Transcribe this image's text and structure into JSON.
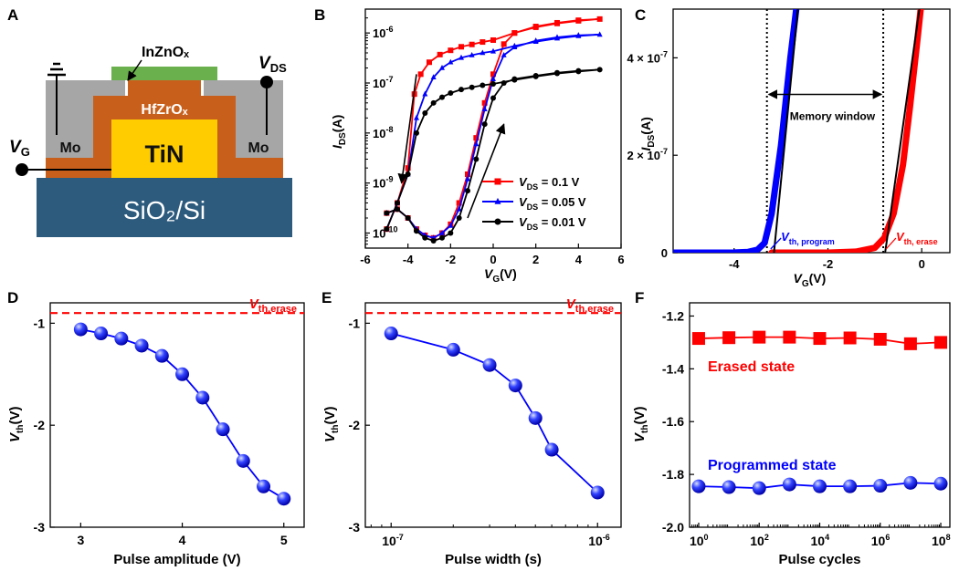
{
  "panel_letters": [
    "A",
    "B",
    "C",
    "D",
    "E",
    "F"
  ],
  "device": {
    "layers": {
      "substrate": "SiO₂/Si",
      "gate": "TiN",
      "dielectric": "HfZrOₓ",
      "channel": "InZnOₓ",
      "contact_left": "Mo",
      "contact_right": "Mo"
    },
    "terminals": {
      "gate": "V",
      "gate_sub": "G",
      "drain": "V",
      "drain_sub": "DS"
    },
    "colors": {
      "substrate": "#2d5b7e",
      "gate": "#ffcc00",
      "dielectric": "#c8601c",
      "contact": "#a6a6a6",
      "channel": "#6ab04c"
    }
  },
  "chart_data": [
    {
      "id": "B",
      "type": "line",
      "yscale": "log",
      "xlabel": "V",
      "xlabel_sub": "G",
      "xlabel_unit": "(V)",
      "ylabel": "I",
      "ylabel_sub": "DS",
      "ylabel_unit": "(A)",
      "xlim": [
        -6,
        6
      ],
      "ylim": [
        5e-11,
        3e-06
      ],
      "xticks": [
        -6,
        -4,
        -2,
        0,
        2,
        4,
        6
      ],
      "yticks": [
        1e-10,
        1e-09,
        1e-08,
        1e-07,
        1e-06
      ],
      "ytick_labels": [
        {
          "b": "10",
          "e": "-10"
        },
        {
          "b": "10",
          "e": "-9"
        },
        {
          "b": "10",
          "e": "-8"
        },
        {
          "b": "10",
          "e": "-7"
        },
        {
          "b": "10",
          "e": "-6"
        }
      ],
      "legend_position": "lower-right",
      "series": [
        {
          "name": "V",
          "name_sub": "DS",
          "name_value": "= 0.1 V",
          "color": "#ff0000",
          "marker": "square",
          "x": [
            -5,
            -4.5,
            -4,
            -3.7,
            -3.4,
            -3.0,
            -2.5,
            -2.0,
            -1.5,
            -1.0,
            -0.5,
            0,
            1,
            2,
            3,
            4,
            5,
            4,
            3,
            2,
            1,
            0.5,
            0,
            -0.4,
            -0.8,
            -1.2,
            -1.6,
            -2.0,
            -2.4,
            -2.8,
            -3.2,
            -3.6,
            -4.0,
            -4.5,
            -5
          ],
          "y": [
            1.2e-10,
            4e-10,
            2e-09,
            6e-08,
            1.5e-07,
            2.6e-07,
            3.7e-07,
            4.5e-07,
            5.3e-07,
            5.9e-07,
            6.6e-07,
            7.2e-07,
            1e-06,
            1.3e-06,
            1.55e-06,
            1.75e-06,
            1.9e-06,
            1.8e-06,
            1.6e-06,
            1.35e-06,
            1e-06,
            6e-07,
            1.5e-07,
            4e-08,
            8e-09,
            1.5e-09,
            4e-10,
            1.5e-10,
            1e-10,
            8e-11,
            9e-11,
            1.2e-10,
            2e-10,
            3e-10,
            2.5e-10
          ]
        },
        {
          "name": "V",
          "name_sub": "DS",
          "name_value": "= 0.05 V",
          "color": "#0000ff",
          "marker": "triangle",
          "x": [
            -5,
            -4.5,
            -4,
            -3.6,
            -3.2,
            -2.8,
            -2.4,
            -2.0,
            -1.5,
            -1.0,
            -0.5,
            0,
            1,
            2,
            3,
            4,
            5,
            4,
            3,
            2,
            1,
            0.5,
            0,
            -0.4,
            -0.8,
            -1.2,
            -1.6,
            -2.0,
            -2.4,
            -2.8,
            -3.2,
            -3.6,
            -4.0,
            -4.5,
            -5
          ],
          "y": [
            1.2e-10,
            4e-10,
            1.5e-09,
            2e-08,
            6e-08,
            1.3e-07,
            2e-07,
            2.6e-07,
            3.2e-07,
            3.6e-07,
            4e-07,
            4.3e-07,
            5.5e-07,
            6.7e-07,
            7.8e-07,
            8.7e-07,
            9.3e-07,
            9e-07,
            8.2e-07,
            7e-07,
            5.2e-07,
            3.6e-07,
            1.2e-07,
            3e-08,
            6e-09,
            1.2e-09,
            3e-10,
            1.4e-10,
            1e-10,
            8e-11,
            9e-11,
            1.2e-10,
            2e-10,
            3e-10,
            2.5e-10
          ]
        },
        {
          "name": "V",
          "name_sub": "DS",
          "name_value": "= 0.01 V",
          "color": "#000000",
          "marker": "circle",
          "x": [
            -5,
            -4.5,
            -4,
            -3.6,
            -3.2,
            -2.8,
            -2.4,
            -2.0,
            -1.5,
            -1.0,
            -0.5,
            0,
            1,
            2,
            3,
            4,
            5,
            4,
            3,
            2,
            1,
            0.5,
            0,
            -0.4,
            -0.8,
            -1.2,
            -1.6,
            -2.0,
            -2.4,
            -2.8,
            -3.2,
            -3.6,
            -4.0,
            -4.5,
            -5
          ],
          "y": [
            1.2e-10,
            4e-10,
            1.5e-09,
            1e-08,
            2.5e-08,
            4e-08,
            5.2e-08,
            6.3e-08,
            7.4e-08,
            8.2e-08,
            9e-08,
            9.6e-08,
            1.15e-07,
            1.35e-07,
            1.55e-07,
            1.7e-07,
            1.85e-07,
            1.75e-07,
            1.6e-07,
            1.4e-07,
            1.2e-07,
            1e-07,
            5e-08,
            1.5e-08,
            3e-09,
            7e-10,
            2e-10,
            1e-10,
            8e-11,
            7e-11,
            8e-11,
            1.1e-10,
            2e-10,
            3e-10,
            2.5e-10
          ]
        }
      ],
      "arrows": [
        {
          "from": [
            -3.6,
            1.5e-07
          ],
          "to": [
            -4.3,
            1e-09
          ]
        },
        {
          "from": [
            -1.2,
            2e-10
          ],
          "to": [
            0.5,
            1.5e-08
          ]
        }
      ]
    },
    {
      "id": "C",
      "type": "line",
      "xlabel": "V",
      "xlabel_sub": "G",
      "xlabel_unit": "(V)",
      "ylabel": "I",
      "ylabel_sub": "DS",
      "ylabel_unit": "(A)",
      "xlim": [
        -5.3,
        0.6
      ],
      "ylim": [
        0,
        5e-07
      ],
      "xticks": [
        -4,
        -2,
        0
      ],
      "yticks": [
        0,
        2e-07,
        4e-07
      ],
      "ytick_labels": [
        {
          "b": "0",
          "e": ""
        },
        {
          "b": "2 × 10",
          "e": "-7"
        },
        {
          "b": "4 × 10",
          "e": "-7"
        }
      ],
      "series": [
        {
          "name": "program",
          "color": "#0000ff",
          "x": [
            -5.3,
            -4.5,
            -4.0,
            -3.7,
            -3.5,
            -3.35,
            -3.2,
            -3.0,
            -2.8,
            -2.65
          ],
          "y": [
            0,
            0,
            2e-10,
            1.5e-09,
            6e-09,
            2e-08,
            8e-08,
            2.2e-07,
            4e-07,
            5.2e-07
          ]
        },
        {
          "name": "erase",
          "color": "#ff0000",
          "x": [
            -3.2,
            -2.0,
            -1.4,
            -1.0,
            -0.8,
            -0.6,
            -0.4,
            -0.25,
            -0.1,
            0.0
          ],
          "y": [
            0,
            0,
            2e-09,
            1e-08,
            3e-08,
            8e-08,
            1.8e-07,
            3e-07,
            4.3e-07,
            5.2e-07
          ]
        }
      ],
      "fit_lines": [
        {
          "x": [
            -3.15,
            -2.62
          ],
          "y": [
            0,
            5.2e-07
          ]
        },
        {
          "x": [
            -0.78,
            -0.02
          ],
          "y": [
            0,
            5.2e-07
          ]
        }
      ],
      "vlines": [
        -3.3,
        -0.82
      ],
      "annotations": {
        "memory_window": "Memory window",
        "vth_program": "V",
        "vth_program_sub": "th, program",
        "vth_erase": "V",
        "vth_erase_sub": "th, erase"
      },
      "memory_window_y": 3.25e-07
    },
    {
      "id": "D",
      "type": "line",
      "xlabel": "Pulse amplitude (V)",
      "ylabel": "V",
      "ylabel_sub": "th",
      "ylabel_unit": "(V)",
      "xlim": [
        2.7,
        5.2
      ],
      "ylim": [
        -3,
        -0.8
      ],
      "xticks": [
        3,
        4,
        5
      ],
      "yticks": [
        -3,
        -2,
        -1
      ],
      "ref_line": {
        "y": -0.9,
        "label": "V",
        "label_sub": "th,erase",
        "color": "#ff0000"
      },
      "series": [
        {
          "x": [
            3.0,
            3.2,
            3.4,
            3.6,
            3.8,
            4.0,
            4.2,
            4.4,
            4.6,
            4.8,
            5.0
          ],
          "y": [
            -1.06,
            -1.1,
            -1.15,
            -1.22,
            -1.32,
            -1.5,
            -1.73,
            -2.04,
            -2.35,
            -2.6,
            -2.72
          ],
          "color": "#0000ff"
        }
      ]
    },
    {
      "id": "E",
      "type": "line",
      "xscale": "log",
      "xlabel": "Pulse width (s)",
      "ylabel": "V",
      "ylabel_sub": "th",
      "ylabel_unit": "(V)",
      "xlim": [
        7.5e-08,
        1.3e-06
      ],
      "ylim": [
        -3,
        -0.8
      ],
      "xticks": [
        1e-07,
        1e-06
      ],
      "xtick_labels": [
        {
          "b": "10",
          "e": "-7"
        },
        {
          "b": "10",
          "e": "-6"
        }
      ],
      "yticks": [
        -3,
        -2,
        -1
      ],
      "ref_line": {
        "y": -0.9,
        "label": "V",
        "label_sub": "th,erase",
        "color": "#ff0000"
      },
      "series": [
        {
          "x": [
            1e-07,
            2e-07,
            3e-07,
            4e-07,
            5e-07,
            6e-07,
            1e-06
          ],
          "y": [
            -1.1,
            -1.26,
            -1.41,
            -1.61,
            -1.93,
            -2.24,
            -2.66
          ],
          "color": "#0000ff"
        }
      ]
    },
    {
      "id": "F",
      "type": "line",
      "xscale": "log",
      "xlabel": "Pulse cycles",
      "ylabel": "V",
      "ylabel_sub": "th",
      "ylabel_unit": "(V)",
      "xlim": [
        0.5,
        200000000.0
      ],
      "ylim": [
        -2.0,
        -1.15
      ],
      "xticks": [
        1,
        100,
        10000,
        1000000,
        100000000
      ],
      "xtick_labels": [
        {
          "b": "10",
          "e": "0"
        },
        {
          "b": "10",
          "e": "2"
        },
        {
          "b": "10",
          "e": "4"
        },
        {
          "b": "10",
          "e": "6"
        },
        {
          "b": "10",
          "e": "8"
        }
      ],
      "yticks": [
        -2.0,
        -1.8,
        -1.6,
        -1.4,
        -1.2
      ],
      "ytick_labels": [
        "-2.0",
        "-1.8",
        "-1.6",
        "-1.4",
        "-1.2"
      ],
      "series": [
        {
          "name": "Erased state",
          "color": "#ff0000",
          "marker": "square",
          "x": [
            1,
            10,
            100,
            1000,
            10000,
            100000,
            1000000,
            10000000,
            100000000
          ],
          "y": [
            -1.285,
            -1.282,
            -1.28,
            -1.28,
            -1.285,
            -1.283,
            -1.288,
            -1.305,
            -1.3
          ]
        },
        {
          "name": "Programmed state",
          "color": "#0000ff",
          "marker": "circle",
          "x": [
            1,
            10,
            100,
            1000,
            10000,
            100000,
            1000000,
            10000000,
            100000000
          ],
          "y": [
            -1.845,
            -1.848,
            -1.852,
            -1.838,
            -1.845,
            -1.845,
            -1.843,
            -1.832,
            -1.835
          ]
        }
      ]
    }
  ]
}
